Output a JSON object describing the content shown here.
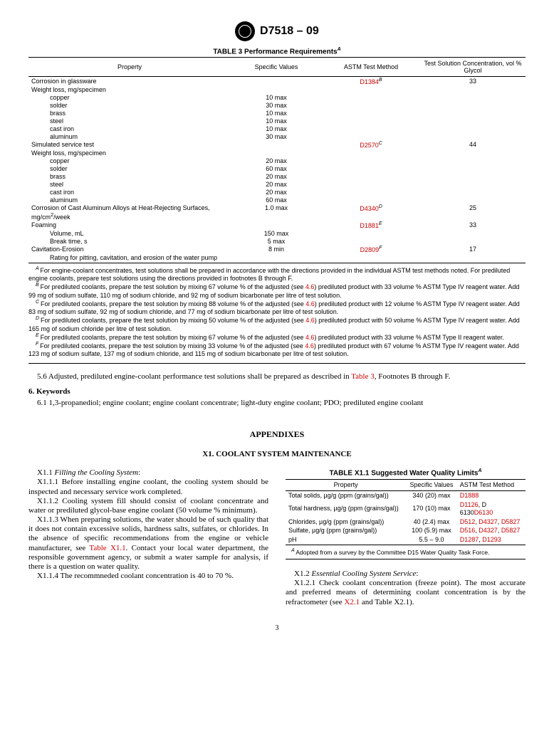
{
  "header": {
    "designation": "D7518 – 09"
  },
  "table3": {
    "title": "TABLE 3  Performance Requirements",
    "title_sup": "A",
    "columns": [
      "Property",
      "Specific Values",
      "ASTM Test Method",
      "Test Solution Concentration, vol % Glycol"
    ],
    "rows": [
      {
        "prop": "Corrosion in glassware",
        "val": "",
        "method": "D1384",
        "msup": "B",
        "conc": "33",
        "indent": 0,
        "link": true
      },
      {
        "prop": "Weight loss, mg/specimen",
        "val": "",
        "method": "",
        "conc": "",
        "indent": 0
      },
      {
        "prop": "copper",
        "val": "10 max",
        "method": "",
        "conc": "",
        "indent": 2
      },
      {
        "prop": "solder",
        "val": "30 max",
        "method": "",
        "conc": "",
        "indent": 2
      },
      {
        "prop": "brass",
        "val": "10 max",
        "method": "",
        "conc": "",
        "indent": 2
      },
      {
        "prop": "steel",
        "val": "10 max",
        "method": "",
        "conc": "",
        "indent": 2
      },
      {
        "prop": "cast iron",
        "val": "10 max",
        "method": "",
        "conc": "",
        "indent": 2
      },
      {
        "prop": "aluminum",
        "val": "30 max",
        "method": "",
        "conc": "",
        "indent": 2
      },
      {
        "prop": "Simulated service test",
        "val": "",
        "method": "D2570",
        "msup": "C",
        "conc": "44",
        "indent": 0,
        "link": true
      },
      {
        "prop": "Weight loss, mg/specimen",
        "val": "",
        "method": "",
        "conc": "",
        "indent": 0
      },
      {
        "prop": "copper",
        "val": "20 max",
        "method": "",
        "conc": "",
        "indent": 2
      },
      {
        "prop": "solder",
        "val": "60 max",
        "method": "",
        "conc": "",
        "indent": 2
      },
      {
        "prop": "brass",
        "val": "20 max",
        "method": "",
        "conc": "",
        "indent": 2
      },
      {
        "prop": "steel",
        "val": "20 max",
        "method": "",
        "conc": "",
        "indent": 2
      },
      {
        "prop": "cast iron",
        "val": "20 max",
        "method": "",
        "conc": "",
        "indent": 2
      },
      {
        "prop": "aluminum",
        "val": "60 max",
        "method": "",
        "conc": "",
        "indent": 2
      }
    ],
    "special_row": {
      "prop_pre": "Corrosion of Cast Aluminum Alloys at Heat-Rejecting Surfaces, mg/cm",
      "prop_post": "/week",
      "val": "1.0 max",
      "method": "D4340",
      "msup": "D",
      "conc": "25"
    },
    "rows2": [
      {
        "prop": "Foaming",
        "val": "",
        "method": "D1881",
        "msup": "E",
        "conc": "33",
        "indent": 0,
        "link": true
      },
      {
        "prop": "Volume, mL",
        "val": "150 max",
        "method": "",
        "conc": "",
        "indent": 2
      },
      {
        "prop": "Break time, s",
        "val": "5 max",
        "method": "",
        "conc": "",
        "indent": 2
      },
      {
        "prop": "Cavitation-Erosion",
        "val": "8 min",
        "method": "D2809",
        "msup": "F",
        "conc": "17",
        "indent": 0,
        "link": true
      },
      {
        "prop": "Rating for pitting, cavitation, and erosion of the water pump",
        "val": "",
        "method": "",
        "conc": "",
        "indent": 2,
        "last": true
      }
    ],
    "footnotes": {
      "A": "For engine-coolant concentrates, test solutions shall be prepared in accordance with the directions provided in the individual ASTM test methods noted. For prediluted engine coolants, prepare test solutions using the directions provided in footnotes B through F.",
      "B_pre": "For prediluted coolants, prepare the test solution by mixing 67 volume % of the adjusted (see ",
      "B_link": "4.6",
      "B_post": ") prediluted product with 33 volume % ASTM Type IV reagent water. Add 99 mg of sodium sulfate, 110 mg of sodium chloride, and 92 mg of sodium bicarbonate per litre of test solution.",
      "C_pre": "For prediluted coolants, prepare the test solution by mixing 88 volume % of the adjusted (see ",
      "C_link": "4.6",
      "C_post": ") prediluted product with 12 volume % ASTM Type IV reagent water. Add 83 mg of sodium sulfate, 92 mg of sodium chloride, and 77 mg of sodium bicarbonate per litre of test solution.",
      "D_pre": "For prediluted coolants, prepare the test solution by mixing 50 volume % of the adjusted (see ",
      "D_link": "4.6",
      "D_post": ") prediluted product with 50 volume % ASTM Type IV reagent water. Add 165 mg of sodium chloride per litre of test solution.",
      "E_pre": "For prediluted coolants, prepare the test solution by mixing 67 volume % of the adjusted (see ",
      "E_link": "4.6",
      "E_post": ") prediluted product with 33 volume % ASTM Type II reagent water.",
      "F_pre": "For prediluted coolants, prepare the test solution by mixing 33 volume % of the adjusted (see ",
      "F_link": "4.6",
      "F_post": ") prediluted product with 67 volume % ASTM Type IV reagent water. Add 123 mg of sodium sulfate, 137 mg of sodium chloride, and 115 mg of sodium bicarbonate per litre of test solution."
    }
  },
  "body": {
    "p56_pre": "5.6 Adjusted, prediluted engine-coolant performance test solutions shall be prepared as described in ",
    "p56_link": "Table 3",
    "p56_post": ", Footnotes B through F.",
    "sec6": "6.  Keywords",
    "p61": "6.1  1,3-propanediol; engine coolant; engine coolant concentrate; light-duty engine coolant; PDO; prediluted engine coolant"
  },
  "appendix": {
    "title": "APPENDIXES",
    "subtitle": "X1.  COOLANT SYSTEM MAINTENANCE",
    "left": {
      "h1": "X1.1  Filling the Cooling System",
      "p1": "X1.1.1 Before installing engine coolant, the cooling system should be inspected and necessary service work completed.",
      "p2": "X1.1.2 Cooling system fill should consist of coolant concentrate and water or prediluted glycol-base engine coolant (50 volume % minimum).",
      "p3_pre": "X1.1.3 When preparing solutions, the water should be of such quality that it does not contain excessive solids, hardness salts, sulfates, or chlorides. In the absence of specific recommendations from the engine or vehicle manufacturer, see ",
      "p3_link": "Table X1.1",
      "p3_post": ". Contact your local water department, the responsible government agency, or submit a water sample for analysis, if there is a question on water quality.",
      "p4": "X1.1.4 The recommneded coolant concentration is 40 to 70 %."
    },
    "tableX11": {
      "title": "TABLE X1.1  Suggested Water Quality Limits",
      "title_sup": "A",
      "columns": [
        "Property",
        "Specific Values",
        "ASTM Test Method"
      ],
      "rows": [
        {
          "prop": "Total solids, µg/g (ppm (grains/gal))",
          "val": "340 (20) max",
          "method": "D1888"
        },
        {
          "prop": "Total hardness, µg/g (ppm (grains/gal))",
          "val": "170 (10) max",
          "method": "D1126, D 6130D6130"
        },
        {
          "prop": "Chlorides, µg/g (ppm (grains/gal))",
          "val": "40 (2.4) max",
          "method": "D512, D4327, D5827"
        },
        {
          "prop": "Sulfate, µg/g (ppm (grains/gal))",
          "val": "100 (5.9) max",
          "method": "D516, D4327, D5827"
        },
        {
          "prop": "pH",
          "val": "5.5 – 9.0",
          "method": "D1287, D1293",
          "last": true
        }
      ],
      "foot": "Adopted from a survey by the Committee D15 Water Quality Task Force."
    },
    "right": {
      "h1": "X1.2  Essential Cooling System Service",
      "p1_pre": "X1.2.1 Check coolant concentration (freeze point). The most accurate and preferred means of determining coolant concentration is by the refractometer (see ",
      "p1_link": "X2.1",
      "p1_post": " and Table X2.1)."
    }
  },
  "page": "3"
}
